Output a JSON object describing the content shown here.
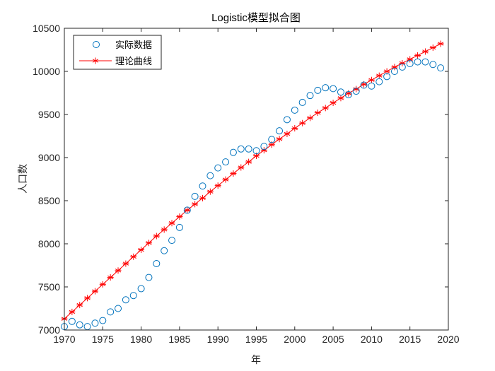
{
  "chart_data": {
    "type": "scatter",
    "title": "Logistic模型拟合图",
    "xlabel": "年",
    "ylabel": "人口数",
    "xlim": [
      1970,
      2020
    ],
    "ylim": [
      7000,
      10500
    ],
    "xticks": [
      1970,
      1975,
      1980,
      1985,
      1990,
      1995,
      2000,
      2005,
      2010,
      2015,
      2020
    ],
    "yticks": [
      7000,
      7500,
      8000,
      8500,
      9000,
      9500,
      10000,
      10500
    ],
    "grid": false,
    "legend_position": "top-left",
    "colors": {
      "actual": "#0072BD",
      "theory": "#FF0000"
    },
    "series": [
      {
        "name": "实际数据",
        "marker": "circle",
        "x": [
          1970,
          1971,
          1972,
          1973,
          1974,
          1975,
          1976,
          1977,
          1978,
          1979,
          1980,
          1981,
          1982,
          1983,
          1984,
          1985,
          1986,
          1987,
          1988,
          1989,
          1990,
          1991,
          1992,
          1993,
          1994,
          1995,
          1996,
          1997,
          1998,
          1999,
          2000,
          2001,
          2002,
          2003,
          2004,
          2005,
          2006,
          2007,
          2008,
          2009,
          2010,
          2011,
          2012,
          2013,
          2014,
          2015,
          2016,
          2017,
          2018,
          2019
        ],
        "y": [
          7040,
          7100,
          7060,
          7040,
          7080,
          7110,
          7210,
          7250,
          7350,
          7400,
          7480,
          7610,
          7770,
          7920,
          8040,
          8190,
          8390,
          8550,
          8670,
          8790,
          8880,
          8950,
          9060,
          9100,
          9100,
          9080,
          9130,
          9210,
          9310,
          9440,
          9550,
          9640,
          9720,
          9780,
          9810,
          9800,
          9760,
          9730,
          9770,
          9840,
          9830,
          9880,
          9940,
          10000,
          10050,
          10090,
          10110,
          10110,
          10080,
          10040
        ]
      },
      {
        "name": "理论曲线",
        "marker": "asterisk",
        "x": [
          1970,
          1971,
          1972,
          1973,
          1974,
          1975,
          1976,
          1977,
          1978,
          1979,
          1980,
          1981,
          1982,
          1983,
          1984,
          1985,
          1986,
          1987,
          1988,
          1989,
          1990,
          1991,
          1992,
          1993,
          1994,
          1995,
          1996,
          1997,
          1998,
          1999,
          2000,
          2001,
          2002,
          2003,
          2004,
          2005,
          2006,
          2007,
          2008,
          2009,
          2010,
          2011,
          2012,
          2013,
          2014,
          2015,
          2016,
          2017,
          2018,
          2019
        ],
        "y": [
          7130,
          7210,
          7290,
          7370,
          7450,
          7530,
          7610,
          7690,
          7770,
          7850,
          7930,
          8010,
          8090,
          8165,
          8240,
          8315,
          8390,
          8460,
          8530,
          8605,
          8675,
          8745,
          8815,
          8885,
          8950,
          9020,
          9085,
          9150,
          9215,
          9275,
          9340,
          9400,
          9460,
          9520,
          9575,
          9635,
          9690,
          9745,
          9795,
          9850,
          9900,
          9950,
          10000,
          10050,
          10095,
          10140,
          10185,
          10230,
          10275,
          10320
        ]
      }
    ]
  }
}
